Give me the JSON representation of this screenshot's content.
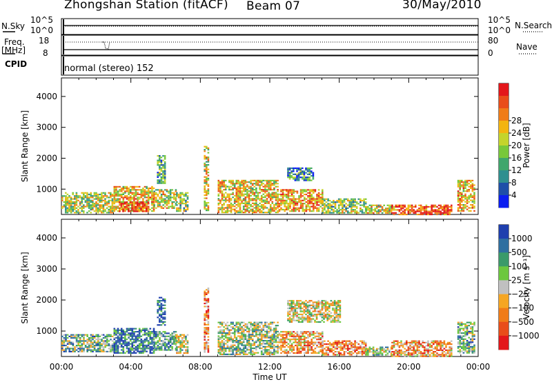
{
  "header": {
    "station": "Zhongshan Station (fitACF)",
    "beam": "Beam 07",
    "date": "30/May/2010"
  },
  "top_panels": {
    "nsky_label": "N.Sky",
    "nsky_ticks": [
      "10^5",
      "10^0"
    ],
    "nsearch_label": "N.Search",
    "nsearch_ticks": [
      "10^5",
      "10^0"
    ],
    "freq_label": "Freq.",
    "freq_unit": "[MHz]",
    "freq_ticks": [
      "18",
      "8"
    ],
    "nave_label": "Nave",
    "nave_ticks": [
      "80",
      "0"
    ],
    "cpid_label": "CPID",
    "cpid_text": "normal (stereo) 152"
  },
  "chart_data": [
    {
      "type": "heatmap",
      "quantity": "Power",
      "ylabel": "Slant Range [km]",
      "colorbar_label": "Power [dB]",
      "ylim": [
        180,
        4600
      ],
      "yticks": [
        1000,
        2000,
        3000,
        4000
      ],
      "xlim_hours": [
        0,
        24
      ],
      "colorbar_ticks": [
        "4",
        "8",
        "12",
        "16",
        "20",
        "24",
        "28"
      ],
      "colors": [
        "#0b1ef0",
        "#1e4fa8",
        "#2f8f8f",
        "#3fa66c",
        "#78c83a",
        "#c4d42c",
        "#f3b410",
        "#f07c18",
        "#e94d1a",
        "#e3171b"
      ],
      "data": [
        {
          "start": 0.0,
          "end": 0.25,
          "rmin": 400,
          "rmax": 800,
          "level": 0.5
        },
        {
          "start": 0.2,
          "end": 3.0,
          "rmin": 250,
          "rmax": 900,
          "level": 0.5
        },
        {
          "start": 3.0,
          "end": 5.3,
          "rmin": 300,
          "rmax": 1100,
          "level": 0.65
        },
        {
          "start": 3.3,
          "end": 5.0,
          "rmin": 300,
          "rmax": 600,
          "level": 0.9
        },
        {
          "start": 5.3,
          "end": 6.6,
          "rmin": 400,
          "rmax": 1000,
          "level": 0.55
        },
        {
          "start": 5.5,
          "end": 6.0,
          "rmin": 1200,
          "rmax": 2100,
          "level": 0.35
        },
        {
          "start": 6.6,
          "end": 7.3,
          "rmin": 300,
          "rmax": 900,
          "level": 0.45
        },
        {
          "start": 8.2,
          "end": 8.5,
          "rmin": 300,
          "rmax": 2400,
          "level": 0.55
        },
        {
          "start": 9.0,
          "end": 12.5,
          "rmin": 250,
          "rmax": 1300,
          "level": 0.6
        },
        {
          "start": 12.5,
          "end": 15.0,
          "rmin": 300,
          "rmax": 1000,
          "level": 0.7
        },
        {
          "start": 13.0,
          "end": 14.5,
          "rmin": 1300,
          "rmax": 1700,
          "level": 0.3
        },
        {
          "start": 15.0,
          "end": 17.5,
          "rmin": 250,
          "rmax": 700,
          "level": 0.45
        },
        {
          "start": 17.5,
          "end": 19.0,
          "rmin": 250,
          "rmax": 500,
          "level": 0.55
        },
        {
          "start": 19.0,
          "end": 22.5,
          "rmin": 200,
          "rmax": 500,
          "level": 0.85
        },
        {
          "start": 22.8,
          "end": 23.8,
          "rmin": 300,
          "rmax": 1300,
          "level": 0.65
        }
      ]
    },
    {
      "type": "heatmap",
      "quantity": "Velocity",
      "ylabel": "Slant Range [km]",
      "xlabel": "Time UT",
      "colorbar_label": "Velocity [m s⁻¹]",
      "ylim": [
        180,
        4600
      ],
      "yticks": [
        1000,
        2000,
        3000,
        4000
      ],
      "xlim_hours": [
        0,
        24
      ],
      "xtick_labels": [
        "00:00",
        "04:00",
        "08:00",
        "12:00",
        "16:00",
        "20:00",
        "00:00"
      ],
      "colorbar_ticks": [
        "1000",
        "500",
        "100",
        "25",
        "−25",
        "−100",
        "−500",
        "−1000"
      ],
      "colors": [
        "#1f3fae",
        "#2f6fa0",
        "#3a9a6a",
        "#6cc73f",
        "#c0c0c0",
        "#f5a623",
        "#f07c18",
        "#e94d1a",
        "#e3171b"
      ],
      "data": [
        {
          "start": 0.0,
          "end": 3.0,
          "rmin": 350,
          "rmax": 900,
          "level": 0.35
        },
        {
          "start": 3.0,
          "end": 5.3,
          "rmin": 300,
          "rmax": 1100,
          "level": 0.2
        },
        {
          "start": 5.3,
          "end": 6.6,
          "rmin": 400,
          "rmax": 1000,
          "level": 0.3
        },
        {
          "start": 5.5,
          "end": 6.0,
          "rmin": 1200,
          "rmax": 2100,
          "level": 0.1
        },
        {
          "start": 6.6,
          "end": 7.3,
          "rmin": 300,
          "rmax": 900,
          "level": 0.45
        },
        {
          "start": 8.2,
          "end": 8.5,
          "rmin": 300,
          "rmax": 2400,
          "level": 0.72
        },
        {
          "start": 9.0,
          "end": 12.5,
          "rmin": 250,
          "rmax": 1300,
          "level": 0.42
        },
        {
          "start": 12.5,
          "end": 15.0,
          "rmin": 300,
          "rmax": 1000,
          "level": 0.65
        },
        {
          "start": 13.0,
          "end": 16.0,
          "rmin": 1300,
          "rmax": 2000,
          "level": 0.52
        },
        {
          "start": 15.0,
          "end": 17.5,
          "rmin": 250,
          "rmax": 700,
          "level": 0.7
        },
        {
          "start": 17.5,
          "end": 19.0,
          "rmin": 250,
          "rmax": 500,
          "level": 0.45
        },
        {
          "start": 19.0,
          "end": 22.5,
          "rmin": 200,
          "rmax": 700,
          "level": 0.68
        },
        {
          "start": 22.8,
          "end": 23.8,
          "rmin": 300,
          "rmax": 1300,
          "level": 0.35
        }
      ]
    }
  ]
}
